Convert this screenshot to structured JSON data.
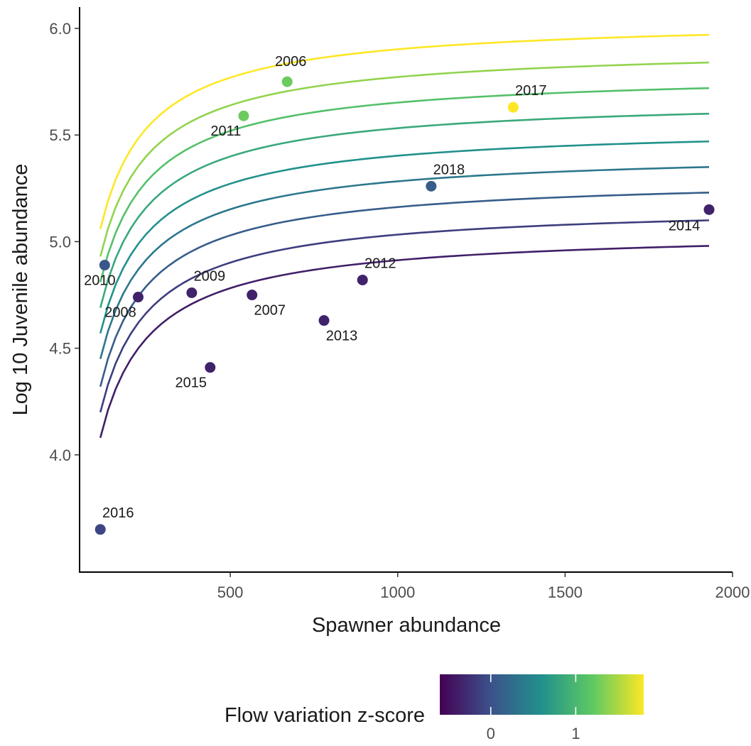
{
  "chart_data": {
    "type": "scatter",
    "xlabel": "Spawner abundance",
    "ylabel": "Log 10 Juvenile abundance",
    "xlim": [
      50,
      2000
    ],
    "ylim": [
      3.45,
      6.1
    ],
    "x_ticks": [
      500,
      1000,
      1500,
      2000
    ],
    "x_tick_labels": [
      "500",
      "1000",
      "1500",
      "2000"
    ],
    "y_ticks": [
      4.0,
      4.5,
      5.0,
      5.5,
      6.0
    ],
    "y_tick_labels": [
      "4.0",
      "4.5",
      "5.0",
      "5.5",
      "6.0"
    ],
    "grid": false,
    "points": [
      {
        "label": "2006",
        "x": 670,
        "y": 5.75,
        "z": 1.25
      },
      {
        "label": "2007",
        "x": 565,
        "y": 4.75,
        "z": -0.35
      },
      {
        "label": "2008",
        "x": 225,
        "y": 4.74,
        "z": -0.35
      },
      {
        "label": "2009",
        "x": 385,
        "y": 4.76,
        "z": -0.35
      },
      {
        "label": "2010",
        "x": 125,
        "y": 4.89,
        "z": 0.05
      },
      {
        "label": "2011",
        "x": 540,
        "y": 5.59,
        "z": 1.25
      },
      {
        "label": "2012",
        "x": 895,
        "y": 4.82,
        "z": -0.35
      },
      {
        "label": "2013",
        "x": 780,
        "y": 4.63,
        "z": -0.35
      },
      {
        "label": "2014",
        "x": 1930,
        "y": 5.15,
        "z": -0.35
      },
      {
        "label": "2015",
        "x": 440,
        "y": 4.41,
        "z": -0.35
      },
      {
        "label": "2016",
        "x": 112,
        "y": 3.65,
        "z": -0.1
      },
      {
        "label": "2017",
        "x": 1345,
        "y": 5.63,
        "z": 1.8
      },
      {
        "label": "2018",
        "x": 1100,
        "y": 5.26,
        "z": 0.1
      }
    ],
    "curves": [
      {
        "z": -0.38,
        "values": [
          {
            "x": 112,
            "y": 4.08
          },
          {
            "x": 1930,
            "y": 4.98
          }
        ]
      },
      {
        "z": -0.15,
        "values": [
          {
            "x": 112,
            "y": 4.2
          },
          {
            "x": 1930,
            "y": 5.1
          }
        ]
      },
      {
        "z": 0.1,
        "values": [
          {
            "x": 112,
            "y": 4.32
          },
          {
            "x": 1930,
            "y": 5.23
          }
        ]
      },
      {
        "z": 0.35,
        "values": [
          {
            "x": 112,
            "y": 4.45
          },
          {
            "x": 1930,
            "y": 5.35
          }
        ]
      },
      {
        "z": 0.6,
        "values": [
          {
            "x": 112,
            "y": 4.57
          },
          {
            "x": 1930,
            "y": 5.47
          }
        ]
      },
      {
        "z": 0.85,
        "values": [
          {
            "x": 112,
            "y": 4.69
          },
          {
            "x": 1930,
            "y": 5.6
          }
        ]
      },
      {
        "z": 1.1,
        "values": [
          {
            "x": 112,
            "y": 4.81
          },
          {
            "x": 1930,
            "y": 5.72
          }
        ]
      },
      {
        "z": 1.4,
        "values": [
          {
            "x": 112,
            "y": 4.93
          },
          {
            "x": 1930,
            "y": 5.84
          }
        ]
      },
      {
        "z": 1.8,
        "values": [
          {
            "x": 112,
            "y": 5.06
          },
          {
            "x": 1930,
            "y": 5.97
          }
        ]
      }
    ],
    "legend": {
      "title": "Flow variation z-score",
      "position": "bottom",
      "type": "colorbar",
      "palette": "viridis",
      "range": [
        -0.6,
        1.8
      ],
      "ticks": [
        0,
        1
      ],
      "tick_labels": [
        "0",
        "1"
      ],
      "colors": [
        "#440154",
        "#3b528b",
        "#21918c",
        "#5ec962",
        "#fde725"
      ]
    }
  }
}
